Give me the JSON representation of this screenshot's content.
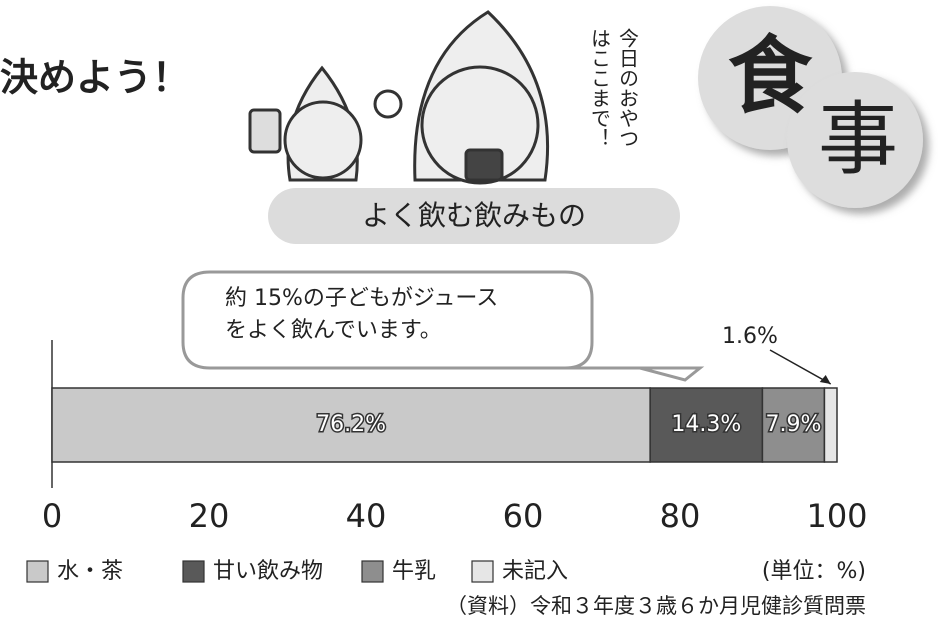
{
  "header": {
    "title": "決めよう！",
    "badge": [
      "食",
      "事"
    ],
    "speech": [
      "今日のおやつ",
      "はここまで！"
    ]
  },
  "chart_data": {
    "type": "stacked-bar-horizontal",
    "subtitle": "よく飲む飲みもの",
    "annotation": [
      "約 15%の子どもがジュース",
      "をよく飲んでいます。"
    ],
    "categories": [
      null
    ],
    "series": [
      {
        "name": "水・茶",
        "color": "#c9c9c9",
        "values": [
          76.2
        ],
        "value_labels": [
          "76.2%"
        ]
      },
      {
        "name": "甘い飲み物",
        "color": "#595959",
        "values": [
          14.3
        ],
        "value_labels": [
          "14.3%"
        ]
      },
      {
        "name": "牛乳",
        "color": "#8e8e8e",
        "values": [
          7.9
        ],
        "value_labels": [
          "7.9%"
        ]
      },
      {
        "name": "未記入",
        "color": "#e6e6e6",
        "values": [
          1.6
        ],
        "value_labels": [
          "1.6%"
        ]
      }
    ],
    "xlim": [
      0,
      100
    ],
    "xticks": [
      0,
      20,
      40,
      60,
      80,
      100
    ],
    "unit_label": "(単位：%)",
    "source": "（資料）令和３年度３歳６か月児健診質問票"
  }
}
